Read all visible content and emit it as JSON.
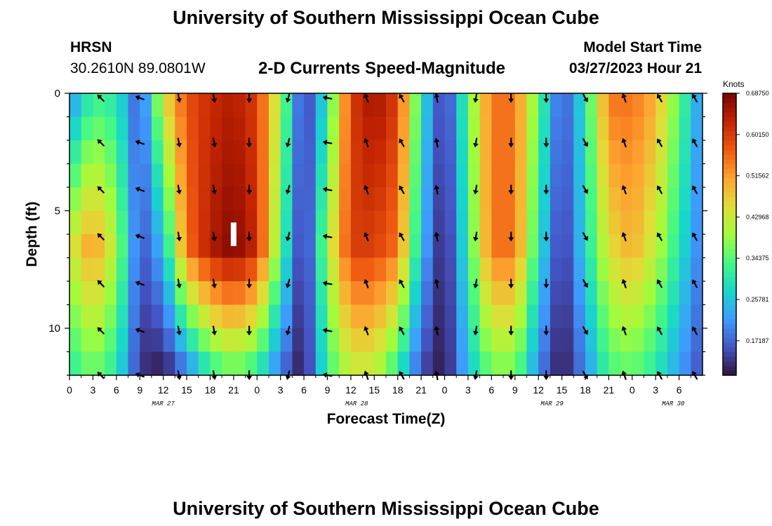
{
  "header": {
    "title": "University of Southern Mississippi Ocean Cube",
    "station": "HRSN",
    "coordinates": "30.2610N  89.0801W",
    "chart_heading": "2-D Currents Speed-Magnitude",
    "model_start_label": "Model Start Time",
    "model_start_value": "03/27/2023 Hour 21"
  },
  "footer": {
    "title": "University of Southern Mississippi Ocean Cube"
  },
  "colors": {
    "colormap": [
      "#30123b",
      "#4454c4",
      "#3e9bfe",
      "#18d6cb",
      "#46f884",
      "#a2fc3c",
      "#e1dd37",
      "#fea330",
      "#ef5911",
      "#c22402",
      "#7a0403"
    ],
    "arrow": "#000000",
    "current_marker": "#ffffff"
  },
  "chart_data": {
    "type": "heatmap",
    "title": "2-D Currents Speed-Magnitude",
    "xlabel": "Forecast Time(Z)",
    "ylabel": "Depth (ft)",
    "xlim": [
      0,
      81
    ],
    "ylim": [
      12,
      0
    ],
    "x_tick_labels": [
      "0",
      "3",
      "6",
      "9",
      "12",
      "15",
      "18",
      "21",
      "0",
      "3",
      "6",
      "9",
      "12",
      "15",
      "18",
      "21",
      "0",
      "3",
      "6",
      "9",
      "12",
      "15",
      "18",
      "21",
      "0",
      "3",
      "6"
    ],
    "y_ticks": [
      0,
      5,
      10
    ],
    "day_labels": [
      {
        "hour": 12,
        "text": "MAR 27"
      },
      {
        "hour": 36.75,
        "text": "MAR 28"
      },
      {
        "hour": 61.75,
        "text": "MAR 29"
      },
      {
        "hour": 77.25,
        "text": "MAR 30"
      }
    ],
    "colorbar": {
      "title": "Knots",
      "range": [
        0.1,
        0.6875
      ],
      "tick_values": [
        0.6875,
        0.6015,
        0.51562,
        0.42968,
        0.34375,
        0.25781,
        0.17187
      ],
      "tick_labels": [
        "0.68750",
        "0.60150",
        "0.51562",
        "0.42968",
        "0.34375",
        "0.25781",
        "0.17187"
      ]
    },
    "current_time_marker": {
      "hour": 21,
      "depth_range": [
        5.5,
        6.5
      ]
    },
    "speed_model": {
      "time_samples_hours": [
        0,
        3,
        6,
        9,
        12,
        15,
        18,
        21,
        24,
        27,
        30,
        33,
        36,
        39,
        42,
        45,
        48,
        51,
        54,
        57,
        60,
        63,
        66,
        69,
        72,
        75,
        78,
        81
      ],
      "surface_speed_knots": [
        0.2,
        0.32,
        0.3,
        0.15,
        0.45,
        0.58,
        0.62,
        0.64,
        0.6,
        0.4,
        0.12,
        0.3,
        0.6,
        0.66,
        0.6,
        0.3,
        0.12,
        0.35,
        0.55,
        0.55,
        0.35,
        0.15,
        0.3,
        0.55,
        0.55,
        0.5,
        0.35,
        0.2
      ],
      "midwater_speed_knots": [
        0.42,
        0.52,
        0.4,
        0.15,
        0.25,
        0.55,
        0.64,
        0.68,
        0.62,
        0.35,
        0.1,
        0.4,
        0.6,
        0.6,
        0.55,
        0.25,
        0.1,
        0.32,
        0.55,
        0.55,
        0.3,
        0.12,
        0.28,
        0.45,
        0.5,
        0.42,
        0.3,
        0.18
      ],
      "bottom_speed_knots": [
        0.3,
        0.36,
        0.3,
        0.13,
        0.1,
        0.18,
        0.3,
        0.35,
        0.3,
        0.18,
        0.1,
        0.32,
        0.42,
        0.42,
        0.3,
        0.15,
        0.1,
        0.25,
        0.36,
        0.36,
        0.2,
        0.1,
        0.2,
        0.33,
        0.35,
        0.3,
        0.22,
        0.15
      ]
    },
    "vectors": {
      "hours": [
        4,
        9,
        14,
        18.5,
        23,
        28,
        33,
        38,
        42.5,
        47,
        52,
        56.5,
        61,
        66,
        71,
        75.5,
        80
      ],
      "directions_deg": [
        225,
        200,
        80,
        80,
        90,
        105,
        190,
        250,
        240,
        260,
        100,
        90,
        90,
        60,
        250,
        240,
        240
      ],
      "depth_rows_ft": [
        0.2,
        2.1,
        4.1,
        6.1,
        8.1,
        10.1,
        12
      ]
    }
  }
}
